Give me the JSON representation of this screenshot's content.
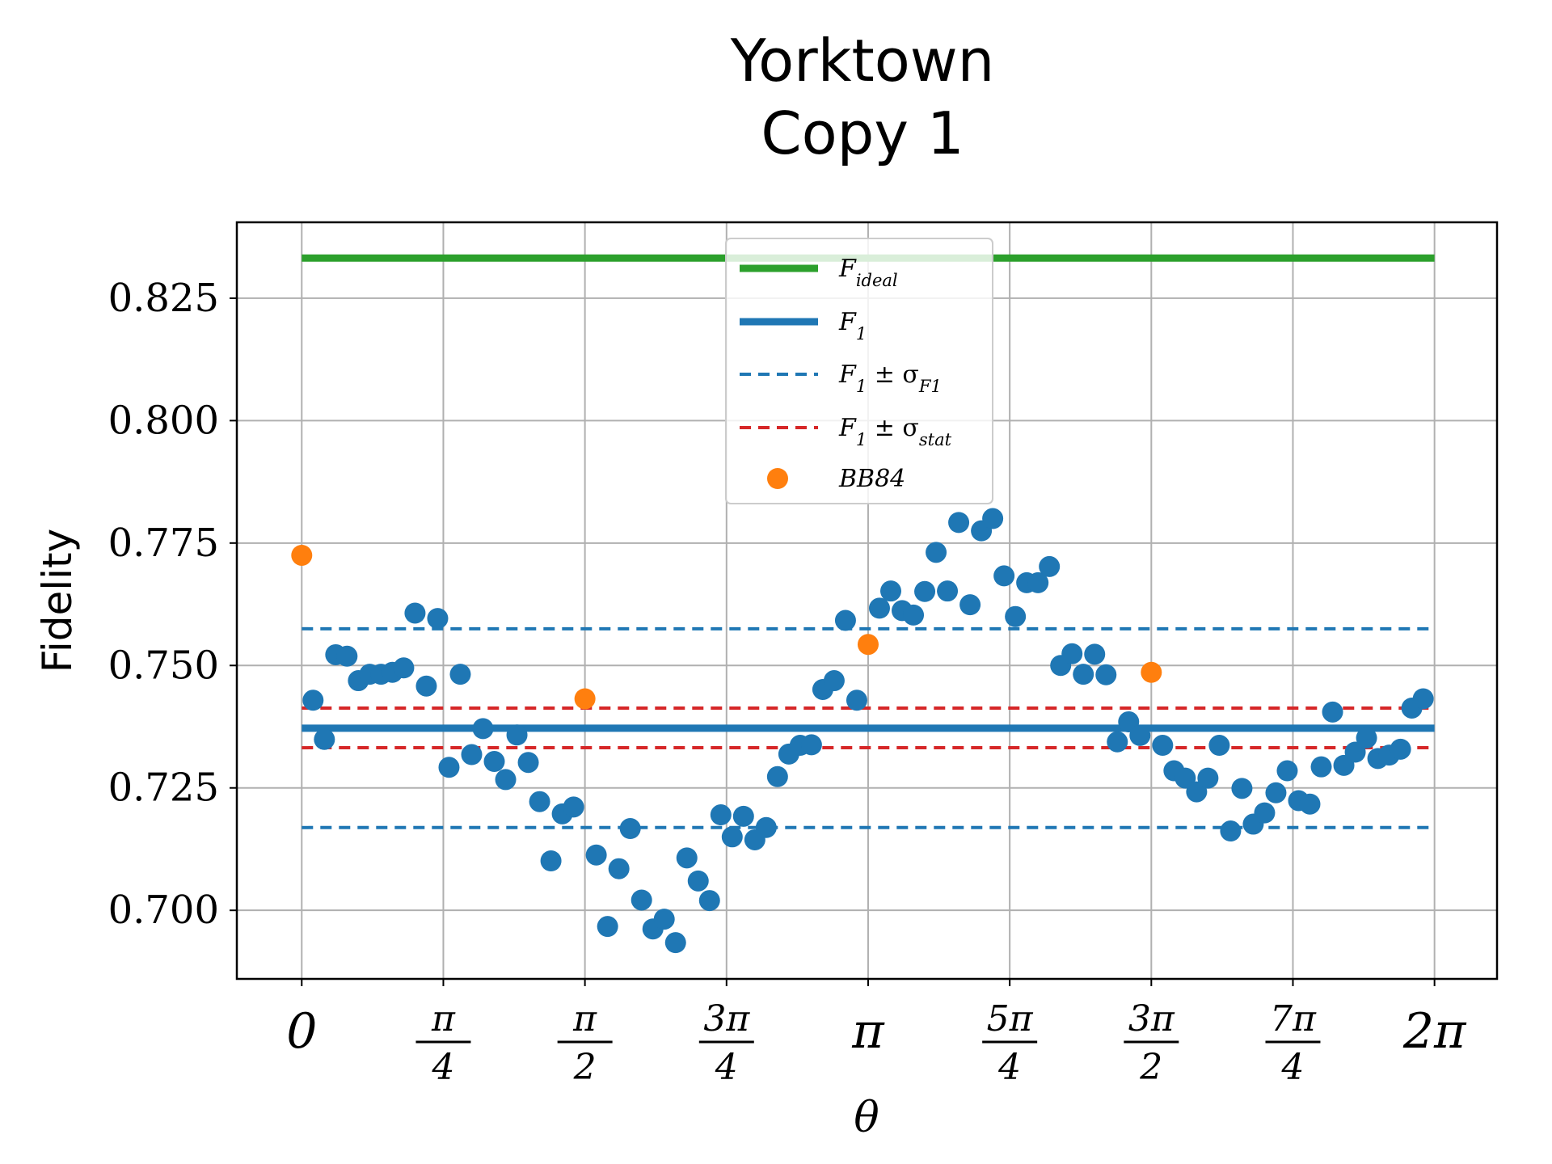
{
  "chart_data": {
    "type": "scatter",
    "title": [
      "Yorktown",
      "Copy 1"
    ],
    "xlabel": "θ",
    "ylabel": "Fidelity",
    "xlim": [
      -0.36,
      6.63
    ],
    "ylim": [
      0.686,
      0.8405
    ],
    "grid": true,
    "legend_position": "top-center",
    "x_ticks": [
      {
        "value": 0,
        "label": "0"
      },
      {
        "value": 0.7854,
        "num": "π",
        "den": "4"
      },
      {
        "value": 1.5708,
        "num": "π",
        "den": "2"
      },
      {
        "value": 2.3562,
        "num": "3π",
        "den": "4"
      },
      {
        "value": 3.1416,
        "label": "π"
      },
      {
        "value": 3.927,
        "num": "5π",
        "den": "4"
      },
      {
        "value": 4.7124,
        "num": "3π",
        "den": "2"
      },
      {
        "value": 5.4978,
        "num": "7π",
        "den": "4"
      },
      {
        "value": 6.2832,
        "label": "2π"
      }
    ],
    "y_ticks": [
      {
        "value": 0.7,
        "label": "0.700"
      },
      {
        "value": 0.725,
        "label": "0.725"
      },
      {
        "value": 0.75,
        "label": "0.750"
      },
      {
        "value": 0.775,
        "label": "0.775"
      },
      {
        "value": 0.8,
        "label": "0.800"
      },
      {
        "value": 0.825,
        "label": "0.825"
      }
    ],
    "lines": [
      {
        "name": "F_ideal",
        "value": 0.8332,
        "x_range": [
          0,
          6.2832
        ],
        "color": "#2ca02c",
        "style": "solid",
        "width": 9
      },
      {
        "name": "F_1",
        "value": 0.7372,
        "x_range": [
          0,
          6.2832
        ],
        "color": "#1f77b4",
        "style": "solid",
        "width": 9
      },
      {
        "name": "F_1 ± σ_F1",
        "value": 0.7575,
        "x_range": [
          0,
          6.2832
        ],
        "color": "#1f77b4",
        "style": "dashed",
        "width": 4
      },
      {
        "name": "F_1 ± σ_F1",
        "value": 0.7169,
        "x_range": [
          0,
          6.2832
        ],
        "color": "#1f77b4",
        "style": "dashed",
        "width": 4
      },
      {
        "name": "F_1 ± σ_stat",
        "value": 0.7413,
        "x_range": [
          0,
          6.2832
        ],
        "color": "#d62728",
        "style": "dashed",
        "width": 4
      },
      {
        "name": "F_1 ± σ_stat",
        "value": 0.7332,
        "x_range": [
          0,
          6.2832
        ],
        "color": "#d62728",
        "style": "dashed",
        "width": 4
      }
    ],
    "series": [
      {
        "name": "data",
        "color": "#1f77b4",
        "x": [
          0.0628,
          0.1257,
          0.1885,
          0.2513,
          0.3142,
          0.377,
          0.4398,
          0.5027,
          0.5655,
          0.6283,
          0.6912,
          0.754,
          0.8168,
          0.8796,
          0.9425,
          1.0053,
          1.0681,
          1.131,
          1.1938,
          1.2566,
          1.3195,
          1.3823,
          1.4451,
          1.508,
          1.6336,
          1.6965,
          1.7593,
          1.8221,
          1.885,
          1.9478,
          2.0106,
          2.0735,
          2.1363,
          2.1991,
          2.2619,
          2.3248,
          2.3876,
          2.4504,
          2.5133,
          2.5761,
          2.6389,
          2.7018,
          2.7646,
          2.8274,
          2.8903,
          2.9531,
          3.0159,
          3.0788,
          3.2044,
          3.2673,
          3.3301,
          3.3929,
          3.4558,
          3.5186,
          3.5814,
          3.6442,
          3.7071,
          3.7699,
          3.8327,
          3.8956,
          3.9584,
          4.0212,
          4.0841,
          4.1469,
          4.2097,
          4.2726,
          4.3354,
          4.3982,
          4.4611,
          4.5239,
          4.5867,
          4.6496,
          4.7752,
          4.8381,
          4.9009,
          4.9637,
          5.0265,
          5.0894,
          5.1522,
          5.215,
          5.2779,
          5.3407,
          5.4035,
          5.4664,
          5.5292,
          5.592,
          5.6549,
          5.7177,
          5.7805,
          5.8434,
          5.9062,
          5.969,
          6.0319,
          6.0947,
          6.1575,
          6.2204
        ],
        "y": [
          0.7429,
          0.7349,
          0.7522,
          0.7519,
          0.7469,
          0.7482,
          0.7482,
          0.7486,
          0.7495,
          0.7607,
          0.7458,
          0.7596,
          0.7292,
          0.7482,
          0.7318,
          0.7371,
          0.7304,
          0.7267,
          0.7358,
          0.7302,
          0.7222,
          0.7101,
          0.7197,
          0.7211,
          0.7113,
          0.6967,
          0.7085,
          0.7167,
          0.7021,
          0.6962,
          0.6982,
          0.6934,
          0.7107,
          0.706,
          0.702,
          0.7195,
          0.715,
          0.7192,
          0.7144,
          0.7169,
          0.7273,
          0.7319,
          0.7337,
          0.7338,
          0.7451,
          0.7469,
          0.7592,
          0.7429,
          0.7617,
          0.7652,
          0.7612,
          0.7603,
          0.7651,
          0.7731,
          0.7652,
          0.7792,
          0.7624,
          0.7775,
          0.78,
          0.7683,
          0.76,
          0.7669,
          0.7669,
          0.7702,
          0.75,
          0.7524,
          0.7482,
          0.7523,
          0.7481,
          0.7344,
          0.7385,
          0.7357,
          0.7337,
          0.7285,
          0.727,
          0.7242,
          0.727,
          0.7337,
          0.7162,
          0.7249,
          0.7176,
          0.7199,
          0.724,
          0.7285,
          0.7224,
          0.7217,
          0.7293,
          0.7405,
          0.7296,
          0.7323,
          0.7352,
          0.731,
          0.7317,
          0.7329,
          0.7413,
          0.7432
        ]
      },
      {
        "name": "BB84",
        "color": "#ff7f0e",
        "x": [
          0,
          1.5708,
          3.1416,
          4.7124
        ],
        "y": [
          0.7725,
          0.7432,
          0.7543,
          0.7486
        ]
      }
    ],
    "legend": [
      {
        "label": "F",
        "sub": "ideal",
        "kind": "solid",
        "color": "#2ca02c"
      },
      {
        "label": "F",
        "sub": "1",
        "kind": "solid",
        "color": "#1f77b4"
      },
      {
        "label": "F",
        "sub": "1",
        "suffix": " ± σ",
        "sub2": "F1",
        "kind": "dashed",
        "color": "#1f77b4"
      },
      {
        "label": "F",
        "sub": "1",
        "suffix": " ± σ",
        "sub2": "stat",
        "kind": "dashed",
        "color": "#d62728"
      },
      {
        "label": "BB84",
        "kind": "marker",
        "color": "#ff7f0e"
      }
    ]
  }
}
